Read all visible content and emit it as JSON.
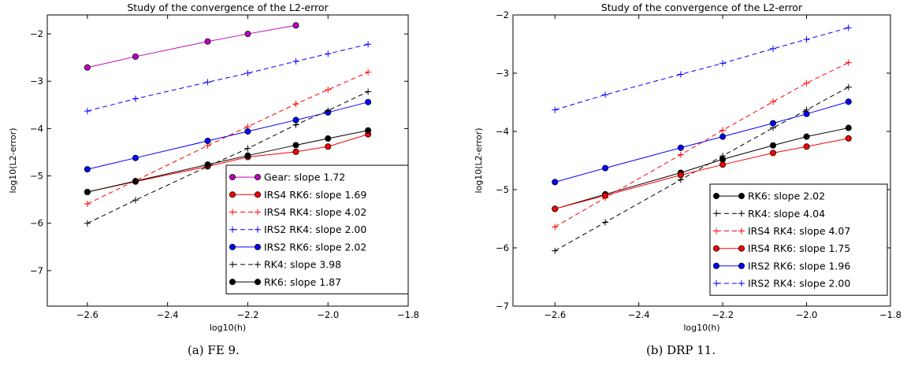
{
  "chart_data": [
    {
      "type": "line",
      "title": "Study of the convergence of the L2-error",
      "xlabel": "log10(h)",
      "ylabel": "log10(L2-error)",
      "xlim": [
        -2.7,
        -1.8
      ],
      "ylim": [
        -7.75,
        -1.6
      ],
      "xticks": [
        -2.6,
        -2.4,
        -2.2,
        -2.0,
        -1.8
      ],
      "xtick_labels": [
        "−2.6",
        "−2.4",
        "−2.2",
        "−2.0",
        "−1.8"
      ],
      "yticks": [
        -7,
        -6,
        -5,
        -4,
        -3,
        -2
      ],
      "ytick_labels": [
        "−7",
        "−6",
        "−5",
        "−4",
        "−3",
        "−2"
      ],
      "grid": false,
      "legend_position": "lower-right",
      "caption": "(a) FE 9.",
      "series": [
        {
          "name": "Gear: slope 1.72",
          "color": "#bf00bf",
          "style": "solid",
          "marker": "circle",
          "x": [
            -2.6,
            -2.48,
            -2.3,
            -2.2,
            -2.08
          ],
          "y": [
            -2.71,
            -2.48,
            -2.16,
            -2.0,
            -1.82
          ]
        },
        {
          "name": "IRS4 RK6: slope 1.69",
          "color": "#ff0000",
          "style": "solid",
          "marker": "circle",
          "x": [
            -2.6,
            -2.48,
            -2.3,
            -2.2,
            -2.08,
            -2.0,
            -1.9
          ],
          "y": [
            -5.34,
            -5.12,
            -4.8,
            -4.6,
            -4.49,
            -4.38,
            -4.12
          ]
        },
        {
          "name": "IRS4 RK4: slope 4.02",
          "color": "#ff0000",
          "style": "dashed",
          "marker": "plus",
          "x": [
            -2.6,
            -2.48,
            -2.3,
            -2.2,
            -2.08,
            -2.0,
            -1.9
          ],
          "y": [
            -5.59,
            -5.1,
            -4.36,
            -3.96,
            -3.48,
            -3.18,
            -2.81
          ]
        },
        {
          "name": "IRS2 RK4: slope 2.00",
          "color": "#0000ff",
          "style": "dashed",
          "marker": "plus",
          "x": [
            -2.6,
            -2.48,
            -2.3,
            -2.2,
            -2.08,
            -2.0,
            -1.9
          ],
          "y": [
            -3.63,
            -3.37,
            -3.02,
            -2.83,
            -2.58,
            -2.42,
            -2.22
          ]
        },
        {
          "name": "IRS2 RK6: slope 2.02",
          "color": "#0000ff",
          "style": "solid",
          "marker": "circle",
          "x": [
            -2.6,
            -2.48,
            -2.3,
            -2.2,
            -2.08,
            -2.0,
            -1.9
          ],
          "y": [
            -4.86,
            -4.62,
            -4.26,
            -4.06,
            -3.82,
            -3.66,
            -3.44
          ]
        },
        {
          "name": "RK4: slope 3.98",
          "color": "#000000",
          "style": "dashed",
          "marker": "plus",
          "x": [
            -2.6,
            -2.48,
            -2.3,
            -2.2,
            -2.08,
            -2.0,
            -1.9
          ],
          "y": [
            -6.0,
            -5.51,
            -4.8,
            -4.42,
            -3.92,
            -3.62,
            -3.22
          ]
        },
        {
          "name": "RK6: slope 1.87",
          "color": "#000000",
          "style": "solid",
          "marker": "circle",
          "x": [
            -2.6,
            -2.48,
            -2.3,
            -2.2,
            -2.08,
            -2.0,
            -1.9
          ],
          "y": [
            -5.34,
            -5.11,
            -4.76,
            -4.57,
            -4.35,
            -4.21,
            -4.04
          ]
        }
      ]
    },
    {
      "type": "line",
      "title": "Study of the convergence of the L2-error",
      "xlabel": "log10(h)",
      "ylabel": "log10(L2-error)",
      "xlim": [
        -2.7,
        -1.8
      ],
      "ylim": [
        -7.0,
        -2.0
      ],
      "xticks": [
        -2.6,
        -2.4,
        -2.2,
        -2.0,
        -1.8
      ],
      "xtick_labels": [
        "−2.6",
        "−2.4",
        "−2.2",
        "−2.0",
        "−1.8"
      ],
      "yticks": [
        -7,
        -6,
        -5,
        -4,
        -3,
        -2
      ],
      "ytick_labels": [
        "−7",
        "−6",
        "−5",
        "−4",
        "−3",
        "−2"
      ],
      "grid": false,
      "legend_position": "lower-right",
      "caption": "(b) DRP 11.",
      "series": [
        {
          "name": "RK6: slope 2.02",
          "color": "#000000",
          "style": "solid",
          "marker": "circle",
          "x": [
            -2.6,
            -2.48,
            -2.3,
            -2.2,
            -2.08,
            -2.0,
            -1.9
          ],
          "y": [
            -5.33,
            -5.08,
            -4.71,
            -4.48,
            -4.24,
            -4.09,
            -3.94
          ]
        },
        {
          "name": "RK4: slope 4.04",
          "color": "#000000",
          "style": "dashed",
          "marker": "plus",
          "x": [
            -2.6,
            -2.48,
            -2.3,
            -2.2,
            -2.08,
            -2.0,
            -1.9
          ],
          "y": [
            -6.05,
            -5.56,
            -4.83,
            -4.42,
            -3.94,
            -3.63,
            -3.24
          ]
        },
        {
          "name": "IRS4 RK4: slope 4.07",
          "color": "#ff0000",
          "style": "dashed",
          "marker": "plus",
          "x": [
            -2.6,
            -2.48,
            -2.3,
            -2.2,
            -2.08,
            -2.0,
            -1.9
          ],
          "y": [
            -5.64,
            -5.14,
            -4.4,
            -3.98,
            -3.49,
            -3.17,
            -2.82
          ]
        },
        {
          "name": "IRS4 RK6: slope 1.75",
          "color": "#ff0000",
          "style": "solid",
          "marker": "circle",
          "x": [
            -2.6,
            -2.48,
            -2.3,
            -2.2,
            -2.08,
            -2.0,
            -1.9
          ],
          "y": [
            -5.33,
            -5.1,
            -4.75,
            -4.57,
            -4.37,
            -4.26,
            -4.12
          ]
        },
        {
          "name": "IRS2 RK6: slope 1.96",
          "color": "#0000ff",
          "style": "solid",
          "marker": "circle",
          "x": [
            -2.6,
            -2.48,
            -2.3,
            -2.2,
            -2.08,
            -2.0,
            -1.9
          ],
          "y": [
            -4.87,
            -4.63,
            -4.28,
            -4.09,
            -3.86,
            -3.7,
            -3.49
          ]
        },
        {
          "name": "IRS2 RK4: slope 2.00",
          "color": "#0000ff",
          "style": "dashed",
          "marker": "plus",
          "x": [
            -2.6,
            -2.48,
            -2.3,
            -2.2,
            -2.08,
            -2.0,
            -1.9
          ],
          "y": [
            -3.63,
            -3.37,
            -3.02,
            -2.83,
            -2.58,
            -2.42,
            -2.22
          ]
        }
      ]
    }
  ]
}
